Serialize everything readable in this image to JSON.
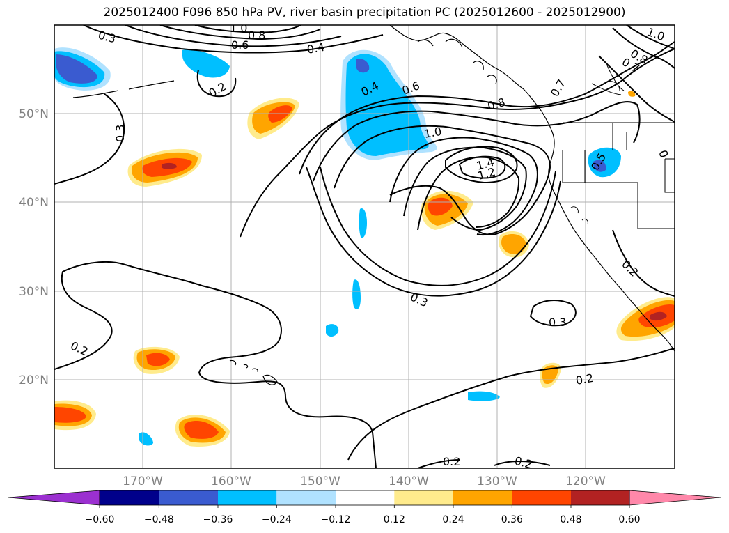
{
  "title": "2025012400 F096 850 hPa PV, river basin precipitation PC (2025012600 - 2025012900)",
  "lat_labels": [
    "50°N",
    "40°N",
    "30°N",
    "20°N"
  ],
  "lon_labels": [
    "170°W",
    "160°W",
    "150°W",
    "140°W",
    "130°W",
    "120°W"
  ],
  "contour_labels": [
    {
      "text": "0.3"
    },
    {
      "text": "1.0"
    },
    {
      "text": "0.8"
    },
    {
      "text": "0.6"
    },
    {
      "text": "0.4"
    },
    {
      "text": "0.2"
    },
    {
      "text": "0.3"
    },
    {
      "text": "0.4"
    },
    {
      "text": "0.6"
    },
    {
      "text": "0.8"
    },
    {
      "text": "1.0"
    },
    {
      "text": "1.4"
    },
    {
      "text": "1.2"
    },
    {
      "text": "1.0"
    },
    {
      "text": "0.8"
    },
    {
      "text": "0.7"
    },
    {
      "text": "0.7"
    },
    {
      "text": "0.5"
    },
    {
      "text": "0"
    },
    {
      "text": "0.2"
    },
    {
      "text": "0.3"
    },
    {
      "text": "0.3"
    },
    {
      "text": "0.2"
    },
    {
      "text": "0.2"
    },
    {
      "text": "0.2"
    },
    {
      "text": "0.2"
    }
  ],
  "colorbar": {
    "ticks": [
      "−0.60",
      "−0.48",
      "−0.36",
      "−0.24",
      "−0.12",
      "0.12",
      "0.24",
      "0.36",
      "0.48",
      "0.60"
    ],
    "colors": [
      "#9b30d0",
      "#00008b",
      "#3a5bd0",
      "#00bfff",
      "#b0e2ff",
      "#ffffff",
      "#ffeb8c",
      "#ffa500",
      "#ff4500",
      "#b22222",
      "#ff88aa"
    ]
  },
  "anomaly_colors": {
    "pos_low": "#ffeb8c",
    "pos_mid": "#ffa500",
    "pos_high": "#ff4500",
    "neg_low": "#b0e2ff",
    "neg_mid": "#00bfff",
    "neg_high": "#3a5bd0"
  }
}
